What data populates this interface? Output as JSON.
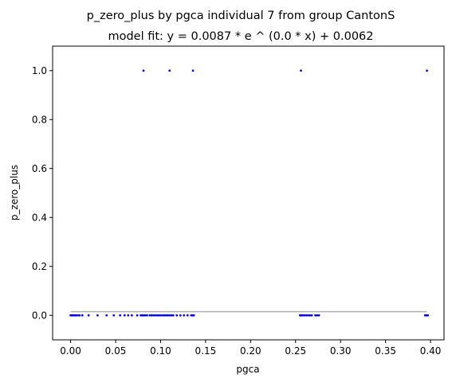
{
  "chart_data": {
    "type": "scatter",
    "title": "p_zero_plus by pgca individual 7 from group CantonS",
    "subtitle": "model fit: y = 0.0087 * e ^ (0.0 * x) + 0.0062",
    "xlabel": "pgca",
    "ylabel": "p_zero_plus",
    "xlim": [
      -0.02,
      0.415
    ],
    "ylim": [
      -0.1,
      1.1
    ],
    "xticks": [
      0.0,
      0.05,
      0.1,
      0.15,
      0.2,
      0.25,
      0.3,
      0.35,
      0.4
    ],
    "xtick_labels": [
      "0.00",
      "0.05",
      "0.10",
      "0.15",
      "0.20",
      "0.25",
      "0.30",
      "0.35",
      "0.40"
    ],
    "yticks": [
      0.0,
      0.2,
      0.4,
      0.6,
      0.8,
      1.0
    ],
    "ytick_labels": [
      "0.0",
      "0.2",
      "0.4",
      "0.6",
      "0.8",
      "1.0"
    ],
    "grid": false,
    "point_color": "#0000ff",
    "fit_color": "#b0b0b0",
    "series": [
      {
        "kind": "points",
        "x": [
          0.0,
          0.001,
          0.002,
          0.003,
          0.004,
          0.005,
          0.006,
          0.008,
          0.01,
          0.013,
          0.02,
          0.03,
          0.04,
          0.048,
          0.055,
          0.06,
          0.064,
          0.068,
          0.074,
          0.078,
          0.079,
          0.08,
          0.081,
          0.082,
          0.083,
          0.085,
          0.088,
          0.09,
          0.092,
          0.094,
          0.096,
          0.098,
          0.1,
          0.102,
          0.104,
          0.106,
          0.108,
          0.11,
          0.112,
          0.114,
          0.118,
          0.122,
          0.126,
          0.13,
          0.134,
          0.135,
          0.136,
          0.137,
          0.255,
          0.256,
          0.257,
          0.258,
          0.26,
          0.262,
          0.264,
          0.266,
          0.268,
          0.272,
          0.274,
          0.276,
          0.394,
          0.395,
          0.396,
          0.397,
          0.081,
          0.11,
          0.136,
          0.256,
          0.396
        ],
        "y": [
          0,
          0,
          0,
          0,
          0,
          0,
          0,
          0,
          0,
          0,
          0,
          0,
          0,
          0,
          0,
          0,
          0,
          0,
          0,
          0,
          0,
          0,
          0,
          0,
          0,
          0,
          0,
          0,
          0,
          0,
          0,
          0,
          0,
          0,
          0,
          0,
          0,
          0,
          0,
          0,
          0,
          0,
          0,
          0,
          0,
          0,
          0,
          0,
          0,
          0,
          0,
          0,
          0,
          0,
          0,
          0,
          0,
          0,
          0,
          0,
          0,
          0,
          0,
          0,
          1,
          1,
          1,
          1,
          1
        ]
      },
      {
        "kind": "fit",
        "x": [
          0.0,
          0.396
        ],
        "y": [
          0.0149,
          0.0149
        ]
      }
    ]
  }
}
